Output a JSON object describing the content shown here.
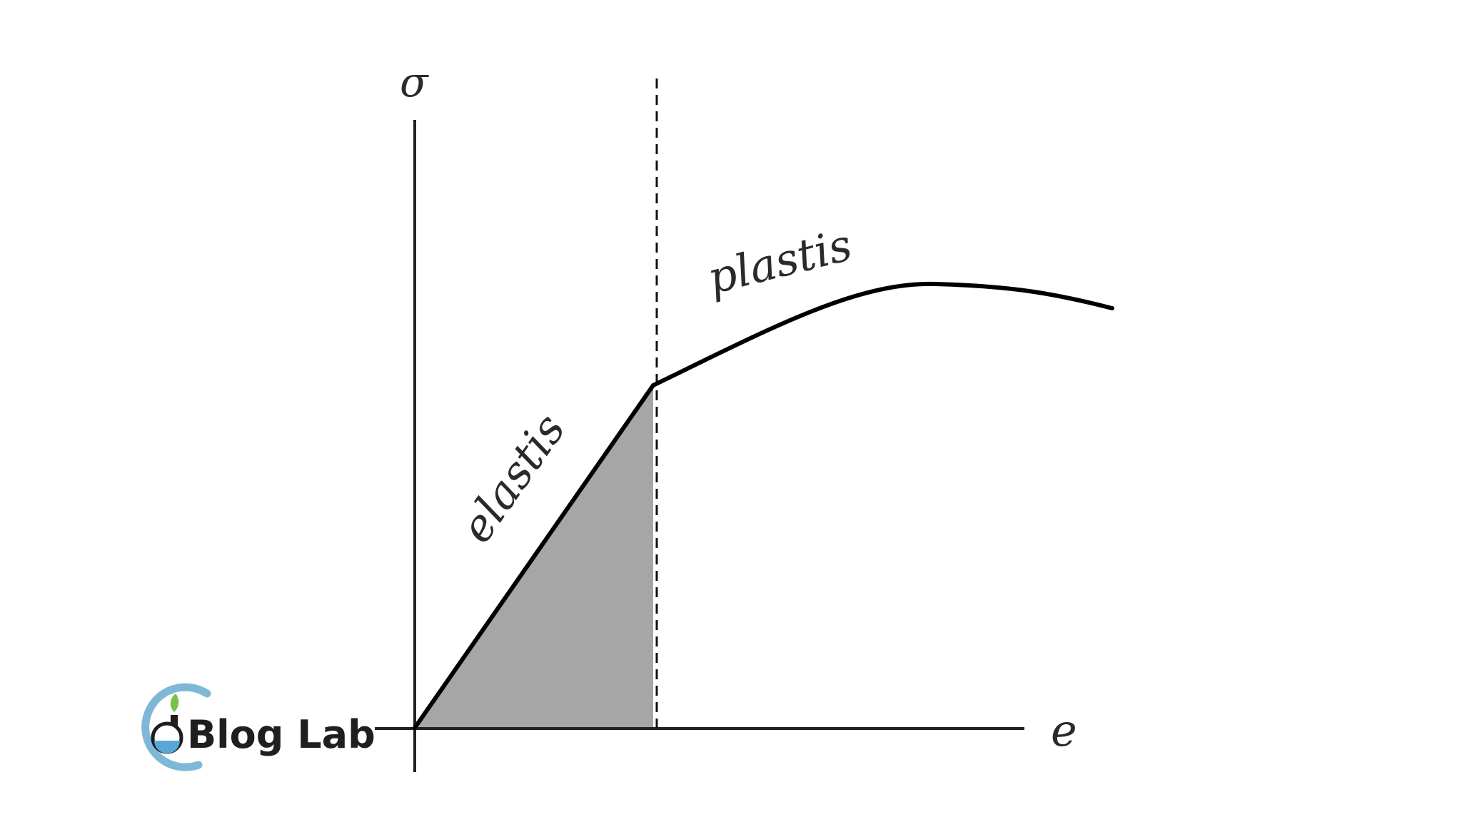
{
  "diagram": {
    "y_axis_label": "σ",
    "x_axis_label": "e",
    "elastic_label": "elastis",
    "plastic_label": "plastis"
  },
  "logo": {
    "text": "Blog Lab",
    "ring_color": "#7fb8d6",
    "water_color": "#5aa6d6",
    "leaf_color": "#7cc04a"
  },
  "colors": {
    "curve": "#000000",
    "shaded_region": "#a6a6a6",
    "axes": "#222222"
  }
}
